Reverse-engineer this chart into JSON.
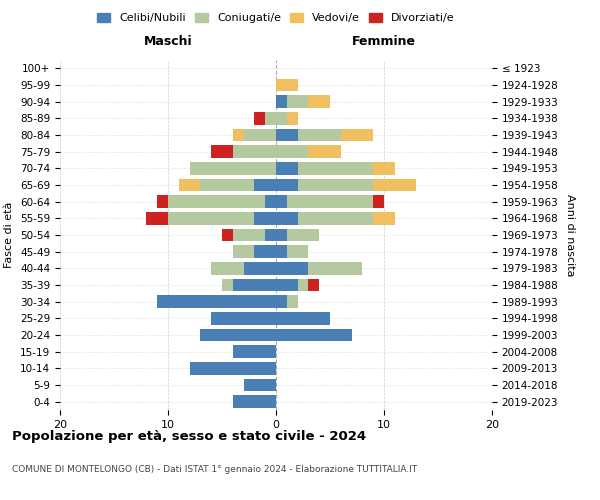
{
  "age_groups": [
    "0-4",
    "5-9",
    "10-14",
    "15-19",
    "20-24",
    "25-29",
    "30-34",
    "35-39",
    "40-44",
    "45-49",
    "50-54",
    "55-59",
    "60-64",
    "65-69",
    "70-74",
    "75-79",
    "80-84",
    "85-89",
    "90-94",
    "95-99",
    "100+"
  ],
  "birth_years": [
    "2019-2023",
    "2014-2018",
    "2009-2013",
    "2004-2008",
    "1999-2003",
    "1994-1998",
    "1989-1993",
    "1984-1988",
    "1979-1983",
    "1974-1978",
    "1969-1973",
    "1964-1968",
    "1959-1963",
    "1954-1958",
    "1949-1953",
    "1944-1948",
    "1939-1943",
    "1934-1938",
    "1929-1933",
    "1924-1928",
    "≤ 1923"
  ],
  "colors": {
    "celibi": "#4a7fb5",
    "coniugati": "#b5c9a0",
    "vedovi": "#f0c060",
    "divorziati": "#cc2222"
  },
  "maschi": {
    "celibi": [
      4,
      3,
      8,
      4,
      7,
      6,
      11,
      4,
      3,
      2,
      1,
      2,
      1,
      2,
      0,
      0,
      0,
      0,
      0,
      0,
      0
    ],
    "coniugati": [
      0,
      0,
      0,
      0,
      0,
      0,
      0,
      1,
      3,
      2,
      3,
      8,
      9,
      5,
      8,
      4,
      3,
      1,
      0,
      0,
      0
    ],
    "vedovi": [
      0,
      0,
      0,
      0,
      0,
      0,
      0,
      0,
      0,
      0,
      0,
      0,
      0,
      2,
      0,
      0,
      1,
      0,
      0,
      0,
      0
    ],
    "divorziati": [
      0,
      0,
      0,
      0,
      0,
      0,
      0,
      0,
      0,
      0,
      1,
      2,
      1,
      0,
      0,
      2,
      0,
      1,
      0,
      0,
      0
    ]
  },
  "femmine": {
    "celibi": [
      0,
      0,
      0,
      0,
      7,
      5,
      1,
      2,
      3,
      1,
      1,
      2,
      1,
      2,
      2,
      0,
      2,
      0,
      1,
      0,
      0
    ],
    "coniugati": [
      0,
      0,
      0,
      0,
      0,
      0,
      1,
      1,
      5,
      2,
      3,
      7,
      8,
      7,
      7,
      3,
      4,
      1,
      2,
      0,
      0
    ],
    "vedovi": [
      0,
      0,
      0,
      0,
      0,
      0,
      0,
      0,
      0,
      0,
      0,
      2,
      0,
      4,
      2,
      3,
      3,
      1,
      2,
      2,
      0
    ],
    "divorziati": [
      0,
      0,
      0,
      0,
      0,
      0,
      0,
      1,
      0,
      0,
      0,
      0,
      1,
      0,
      0,
      0,
      0,
      0,
      0,
      0,
      0
    ]
  },
  "title": "Popolazione per età, sesso e stato civile - 2024",
  "subtitle": "COMUNE DI MONTELONGO (CB) - Dati ISTAT 1° gennaio 2024 - Elaborazione TUTTITALIA.IT",
  "xlabel_left": "Maschi",
  "xlabel_right": "Femmine",
  "ylabel_left": "Fasce di età",
  "ylabel_right": "Anni di nascita",
  "xlim": 20,
  "legend_labels": [
    "Celibi/Nubili",
    "Coniugati/e",
    "Vedovi/e",
    "Divorziati/e"
  ],
  "bg_color": "#ffffff",
  "grid_color": "#cccccc"
}
